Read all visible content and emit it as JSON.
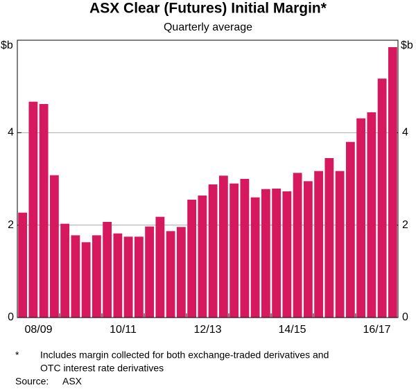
{
  "chart_data": {
    "type": "bar",
    "title": "ASX Clear (Futures) Initial Margin*",
    "subtitle": "Quarterly average",
    "y_unit_left": "$b",
    "y_unit_right": "$b",
    "categories": [
      null,
      null,
      "08/09",
      null,
      null,
      null,
      null,
      null,
      null,
      null,
      "10/11",
      null,
      null,
      null,
      null,
      null,
      null,
      null,
      "12/13",
      null,
      null,
      null,
      null,
      null,
      null,
      null,
      "14/15",
      null,
      null,
      null,
      null,
      null,
      null,
      null,
      "16/17",
      null
    ],
    "values": [
      2.27,
      4.67,
      4.62,
      3.08,
      2.03,
      1.78,
      1.63,
      1.78,
      2.07,
      1.82,
      1.75,
      1.75,
      1.97,
      2.18,
      1.87,
      1.96,
      2.55,
      2.64,
      2.88,
      3.07,
      2.9,
      3.0,
      2.6,
      2.78,
      2.79,
      2.73,
      3.13,
      2.95,
      3.17,
      3.45,
      3.17,
      3.8,
      4.31,
      4.44,
      5.17,
      5.85
    ],
    "color": "#d6195f",
    "ylim": [
      0,
      6
    ],
    "yticks": [
      0,
      2,
      4
    ],
    "grid": true,
    "footnote": {
      "marker": "*",
      "lines": [
        "Includes margin collected for both exchange-traded derivatives and",
        "OTC interest rate derivatives"
      ]
    },
    "source": {
      "label": "Source:",
      "text": "ASX"
    }
  }
}
